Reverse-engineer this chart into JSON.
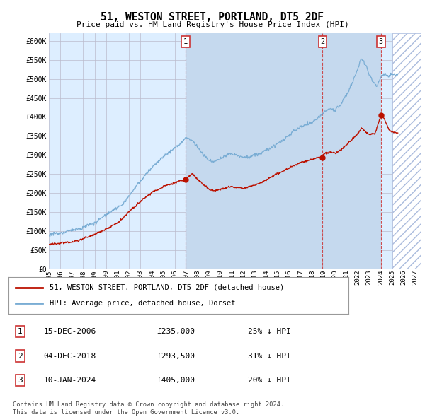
{
  "title": "51, WESTON STREET, PORTLAND, DT5 2DF",
  "subtitle": "Price paid vs. HM Land Registry's House Price Index (HPI)",
  "ylabel_ticks": [
    "£0",
    "£50K",
    "£100K",
    "£150K",
    "£200K",
    "£250K",
    "£300K",
    "£350K",
    "£400K",
    "£450K",
    "£500K",
    "£550K",
    "£600K"
  ],
  "ytick_values": [
    0,
    50000,
    100000,
    150000,
    200000,
    250000,
    300000,
    350000,
    400000,
    450000,
    500000,
    550000,
    600000
  ],
  "xlim_start": 1995.0,
  "xlim_end": 2027.5,
  "ylim_min": 0,
  "ylim_max": 620000,
  "xtick_labels": [
    "1995",
    "1996",
    "1997",
    "1998",
    "1999",
    "2000",
    "2001",
    "2002",
    "2003",
    "2004",
    "2005",
    "2006",
    "2007",
    "2008",
    "2009",
    "2010",
    "2011",
    "2012",
    "2013",
    "2014",
    "2015",
    "2016",
    "2017",
    "2018",
    "2019",
    "2020",
    "2021",
    "2022",
    "2023",
    "2024",
    "2025",
    "2026",
    "2027"
  ],
  "hpi_color": "#7aadd4",
  "price_color": "#bb1100",
  "hatch_color": "#aabbdd",
  "background_color": "#ddeeff",
  "highlight_color": "#c5d9ee",
  "grid_color": "#bbbbcc",
  "sale1_date": "15-DEC-2006",
  "sale1_price": 235000,
  "sale1_pct": "25%",
  "sale1_x": 2006.96,
  "sale2_date": "04-DEC-2018",
  "sale2_price": 293500,
  "sale2_pct": "31%",
  "sale2_x": 2018.92,
  "sale3_date": "10-JAN-2024",
  "sale3_price": 405000,
  "sale3_pct": "20%",
  "sale3_x": 2024.03,
  "legend_line1": "51, WESTON STREET, PORTLAND, DT5 2DF (detached house)",
  "legend_line2": "HPI: Average price, detached house, Dorset",
  "footer1": "Contains HM Land Registry data © Crown copyright and database right 2024.",
  "footer2": "This data is licensed under the Open Government Licence v3.0."
}
